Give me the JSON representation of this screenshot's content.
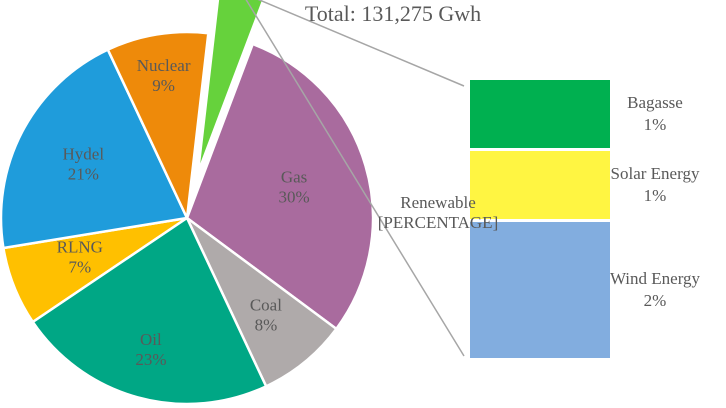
{
  "chart_data": {
    "type": "pie",
    "title": "Total: 131,275 Gwh",
    "slices": [
      {
        "name": "RLNG",
        "label": "7%",
        "value": 7,
        "color": "#FFC000"
      },
      {
        "name": "Hydel",
        "label": "21%",
        "value": 21,
        "color": "#1F9CDB"
      },
      {
        "name": "Nuclear",
        "label": "9%",
        "value": 9,
        "color": "#EE8A0A"
      },
      {
        "name": "Renewable",
        "label": "[PERCENTAGE]",
        "value": 4,
        "color": "#66D23C"
      },
      {
        "name": "Gas",
        "label": "30%",
        "value": 30,
        "color": "#A96B9E"
      },
      {
        "name": "Coal",
        "label": "8%",
        "value": 8,
        "color": "#AFAAAA"
      },
      {
        "name": "Oil",
        "label": "23%",
        "value": 23,
        "color": "#00A785"
      }
    ],
    "breakdown": {
      "of": "Renewable",
      "type": "stacked-bar",
      "items": [
        {
          "name": "Bagasse",
          "label": "1%",
          "value": 1,
          "color": "#00B050"
        },
        {
          "name": "Solar Energy",
          "label": "1%",
          "value": 1,
          "color": "#FFF542"
        },
        {
          "name": "Wind Energy",
          "label": "2%",
          "value": 2,
          "color": "#82ADDF"
        }
      ]
    }
  }
}
